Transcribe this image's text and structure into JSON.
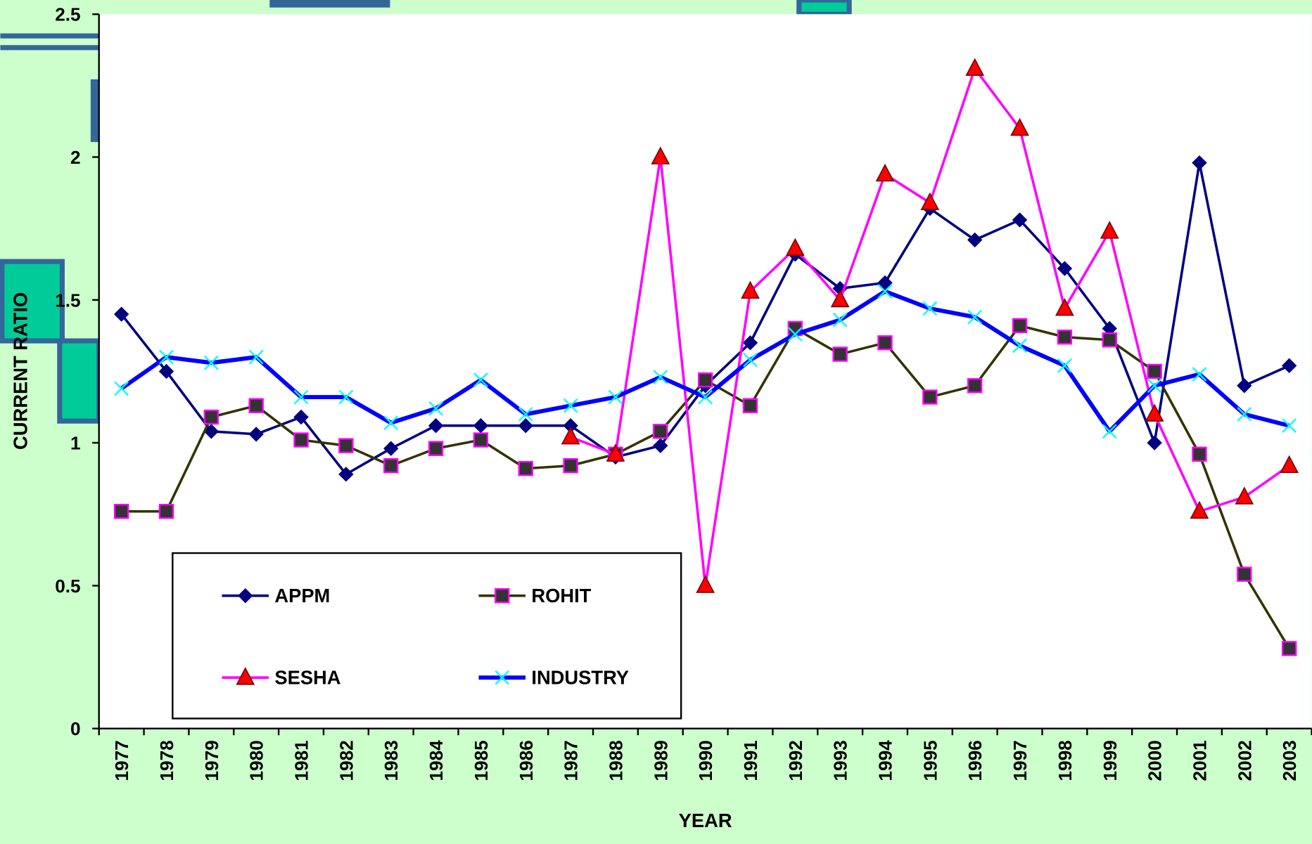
{
  "chart_data": {
    "type": "line",
    "x_label": "YEAR",
    "y_label": "CURRENT RATIO",
    "categories": [
      "1977",
      "1978",
      "1979",
      "1980",
      "1981",
      "1982",
      "1983",
      "1984",
      "1985",
      "1986",
      "1987",
      "1988",
      "1989",
      "1990",
      "1991",
      "1992",
      "1993",
      "1994",
      "1995",
      "1996",
      "1997",
      "1998",
      "1999",
      "2000",
      "2001",
      "2002",
      "2003"
    ],
    "ylim": [
      0,
      2.5
    ],
    "yticks": [
      0,
      0.5,
      1,
      1.5,
      2,
      2.5
    ],
    "grid": false,
    "legend": "lower left",
    "series": [
      {
        "name": "APPM",
        "color": "#000080",
        "marker": "diamond",
        "marker_color": "#000080",
        "values": [
          1.45,
          1.25,
          1.04,
          1.03,
          1.09,
          0.89,
          0.98,
          1.06,
          1.06,
          1.06,
          1.06,
          0.95,
          0.99,
          1.2,
          1.35,
          1.66,
          1.54,
          1.56,
          1.82,
          1.71,
          1.78,
          1.61,
          1.4,
          1.0,
          1.98,
          1.2,
          1.27
        ]
      },
      {
        "name": "ROHIT",
        "color": "#333300",
        "marker": "square",
        "marker_color": "#333333",
        "values": [
          0.76,
          0.76,
          1.09,
          1.13,
          1.01,
          0.99,
          0.92,
          0.98,
          1.01,
          0.91,
          0.92,
          0.96,
          1.04,
          1.22,
          1.13,
          1.4,
          1.31,
          1.35,
          1.16,
          1.2,
          1.41,
          1.37,
          1.36,
          1.25,
          0.96,
          0.54,
          0.28
        ]
      },
      {
        "name": "SESHA",
        "color": "#ff00ff",
        "marker": "triangle",
        "marker_color": "#ff0000",
        "values": [
          null,
          null,
          null,
          null,
          null,
          null,
          null,
          null,
          null,
          null,
          1.02,
          0.96,
          2.0,
          0.5,
          1.53,
          1.68,
          1.5,
          1.94,
          1.84,
          2.31,
          2.1,
          1.47,
          1.74,
          1.1,
          0.76,
          0.81,
          0.92
        ]
      },
      {
        "name": "INDUSTRY",
        "color": "#0000ff",
        "marker": "x",
        "marker_color": "#00ffff",
        "values": [
          1.19,
          1.3,
          1.28,
          1.3,
          1.16,
          1.16,
          1.07,
          1.12,
          1.22,
          1.1,
          1.13,
          1.16,
          1.23,
          1.16,
          1.29,
          1.38,
          1.43,
          1.53,
          1.47,
          1.44,
          1.34,
          1.27,
          1.04,
          1.2,
          1.24,
          1.1,
          1.06
        ]
      }
    ]
  }
}
